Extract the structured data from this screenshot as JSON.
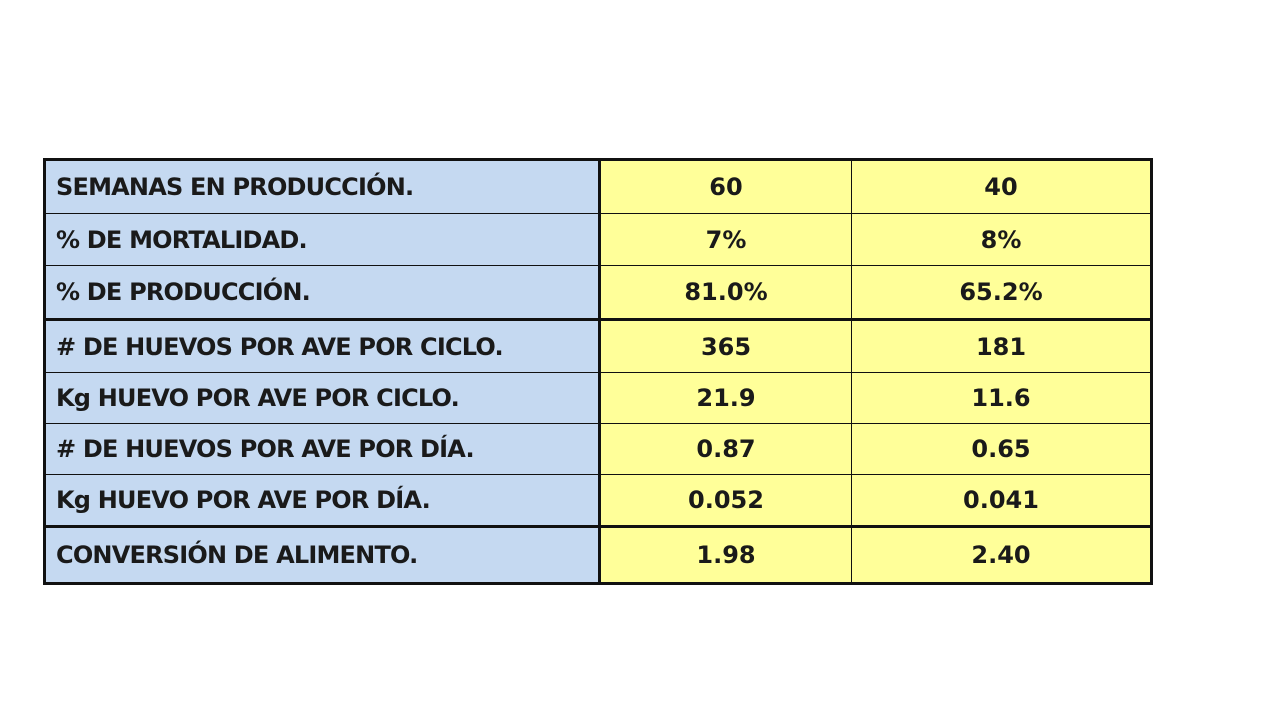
{
  "table": {
    "rows": [
      {
        "label": "SEMANAS EN PRODUCCIÓN.",
        "a": "60",
        "b": "40"
      },
      {
        "label": "% DE MORTALIDAD.",
        "a": "7%",
        "b": "8%"
      },
      {
        "label": "% DE PRODUCCIÓN.",
        "a": "81.0%",
        "b": "65.2%"
      },
      {
        "label": "# DE HUEVOS POR AVE POR CICLO.",
        "a": "365",
        "b": "181"
      },
      {
        "label": "Kg HUEVO POR AVE POR CICLO.",
        "a": "21.9",
        "b": "11.6"
      },
      {
        "label": "# DE HUEVOS POR AVE POR DÍA.",
        "a": "0.87",
        "b": "0.65"
      },
      {
        "label": "Kg HUEVO POR AVE POR DÍA.",
        "a": "0.052",
        "b": "0.041"
      },
      {
        "label": "CONVERSIÓN DE ALIMENTO.",
        "a": "1.98",
        "b": "2.40"
      }
    ]
  },
  "colors": {
    "label_bg": "#c5d9f1",
    "value_bg": "#ffff99",
    "border": "#111111"
  }
}
